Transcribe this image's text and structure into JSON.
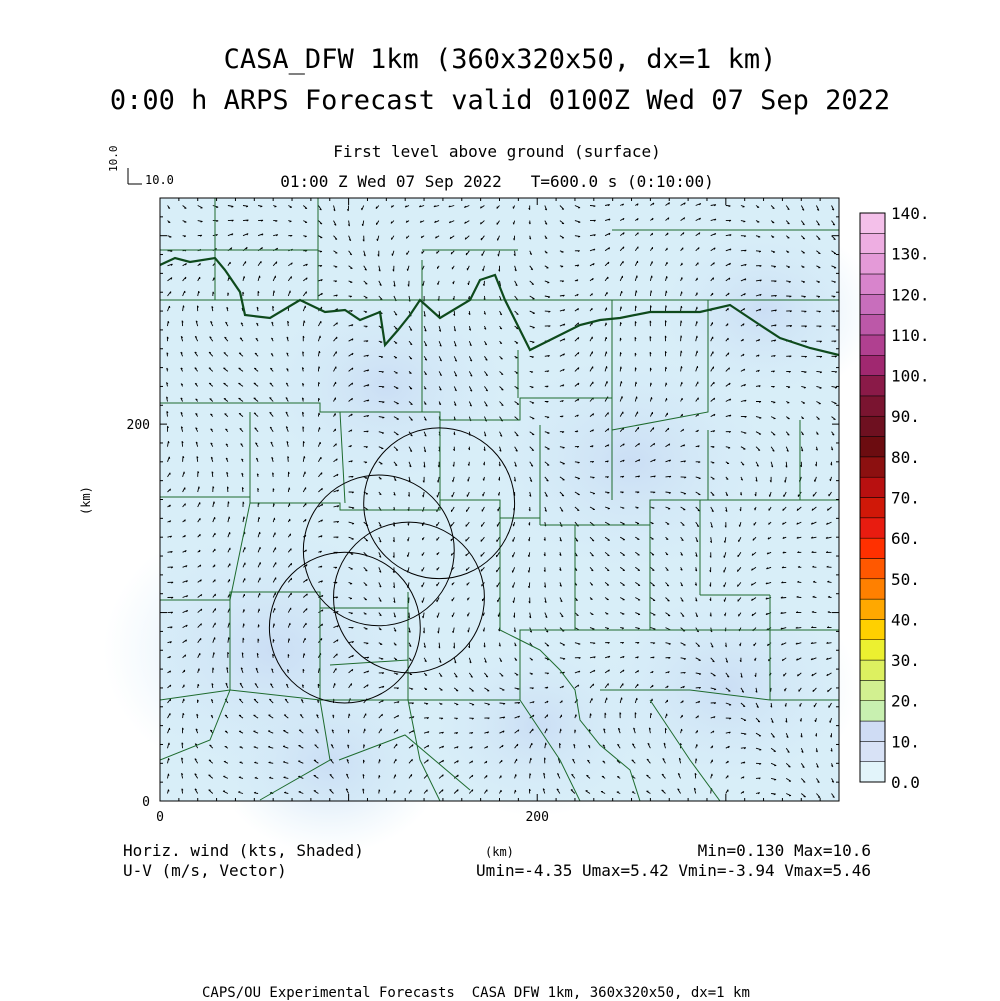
{
  "titles": {
    "line1": "CASA_DFW 1km (360x320x50, dx=1 km)",
    "line2": "0:00 h ARPS Forecast valid 0100Z Wed 07 Sep 2022",
    "level": "First level above ground (surface)",
    "time": "01:00 Z Wed 07 Sep 2022   T=600.0 s (0:10:00)"
  },
  "reference_vector": {
    "vertical_label": "10.0",
    "horizontal_label": "10.0"
  },
  "footer": {
    "left1": "Horiz. wind (kts, Shaded)",
    "left2": "U-V (m/s, Vector)",
    "km": "(km)",
    "minmax": "Min=0.130 Max=10.6",
    "uvrange": "Umin=-4.35 Umax=5.42 Vmin=-3.94 Vmax=5.46",
    "credit": "CAPS/OU Experimental Forecasts  CASA DFW 1km, 360x320x50, dx=1 km"
  },
  "chart_data": {
    "type": "heatmap",
    "title": "CASA_DFW 1km (360x320x50, dx=1 km)",
    "xlabel": "(km)",
    "ylabel": "(km)",
    "xlim": [
      0,
      360
    ],
    "ylim": [
      0,
      320
    ],
    "x_ticks": [
      0,
      200
    ],
    "y_ticks": [
      0,
      200
    ],
    "field": "Horiz. wind (kts, Shaded)",
    "vector_field": "U-V (m/s, Vector)",
    "min": 0.13,
    "max": 10.6,
    "umin": -4.35,
    "umax": 5.42,
    "vmin": -3.94,
    "vmax": 5.46,
    "colorbar": {
      "labels": [
        "0.0",
        "10.",
        "20.",
        "30.",
        "40.",
        "50.",
        "60.",
        "70.",
        "80.",
        "90.",
        "100.",
        "110.",
        "120.",
        "130.",
        "140."
      ],
      "colors": [
        "#e2f4fa",
        "#d8e2f6",
        "#cfdcf4",
        "#c8f0b0",
        "#d2f090",
        "#ddf060",
        "#ecf030",
        "#ffd000",
        "#ffa800",
        "#ff8000",
        "#ff5800",
        "#ff3000",
        "#e81c10",
        "#d01808",
        "#b81010",
        "#8c1010",
        "#6c0c10",
        "#6e1020",
        "#7a1430",
        "#8a1a48",
        "#a02870",
        "#b04090",
        "#bc58a8",
        "#c86ebc",
        "#d884cc",
        "#e49ad8",
        "#eeaee2",
        "#f4c0ea"
      ]
    },
    "radar_rings_km": [
      {
        "x": 148,
        "y": 158,
        "r": 40
      },
      {
        "x": 116,
        "y": 133,
        "r": 40
      },
      {
        "x": 132,
        "y": 108,
        "r": 40
      },
      {
        "x": 98,
        "y": 92,
        "r": 40
      }
    ]
  }
}
